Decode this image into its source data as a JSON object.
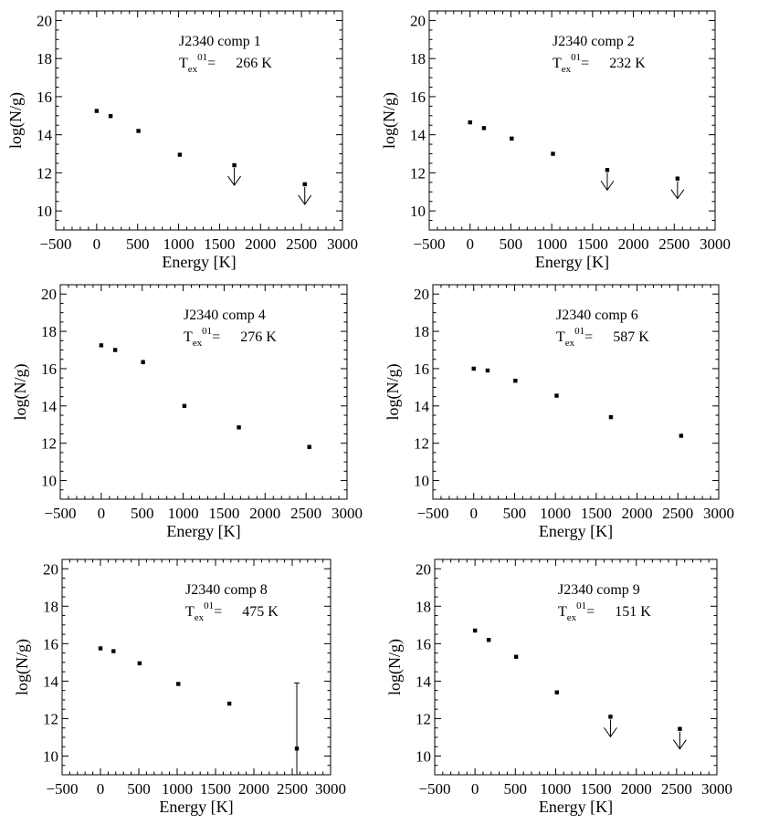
{
  "chart_data": [
    {
      "type": "scatter",
      "title": "J2340 comp 1",
      "annotation": {
        "symbol": "T",
        "subscript": "ex",
        "superscript": "01",
        "equals": "=",
        "value": "266 K"
      },
      "xlabel": "Energy [K]",
      "ylabel": "log(N/g)",
      "xlim": [
        -500,
        3000
      ],
      "ylim": [
        9,
        20.5
      ],
      "xticks": [
        -500,
        0,
        500,
        1000,
        1500,
        2000,
        2500,
        3000
      ],
      "yticks": [
        10,
        12,
        14,
        16,
        18,
        20
      ],
      "points": [
        {
          "x": 0,
          "y": 15.25,
          "upper_limit": false
        },
        {
          "x": 170,
          "y": 14.98,
          "upper_limit": false
        },
        {
          "x": 510,
          "y": 14.2,
          "upper_limit": false
        },
        {
          "x": 1015,
          "y": 12.95,
          "upper_limit": false
        },
        {
          "x": 1680,
          "y": 12.4,
          "upper_limit": true
        },
        {
          "x": 2540,
          "y": 11.4,
          "upper_limit": true
        }
      ]
    },
    {
      "type": "scatter",
      "title": "J2340 comp 2",
      "annotation": {
        "symbol": "T",
        "subscript": "ex",
        "superscript": "01",
        "equals": "=",
        "value": "232 K"
      },
      "xlabel": "Energy [K]",
      "ylabel": "log(N/g)",
      "xlim": [
        -500,
        3000
      ],
      "ylim": [
        9,
        20.5
      ],
      "xticks": [
        -500,
        0,
        500,
        1000,
        1500,
        2000,
        2500,
        3000
      ],
      "yticks": [
        10,
        12,
        14,
        16,
        18,
        20
      ],
      "points": [
        {
          "x": 0,
          "y": 14.65,
          "upper_limit": false
        },
        {
          "x": 170,
          "y": 14.35,
          "upper_limit": false
        },
        {
          "x": 510,
          "y": 13.8,
          "upper_limit": false
        },
        {
          "x": 1015,
          "y": 13.0,
          "upper_limit": false
        },
        {
          "x": 1680,
          "y": 12.15,
          "upper_limit": true
        },
        {
          "x": 2540,
          "y": 11.7,
          "upper_limit": true
        }
      ]
    },
    {
      "type": "scatter",
      "title": "J2340 comp 4",
      "annotation": {
        "symbol": "T",
        "subscript": "ex",
        "superscript": "01",
        "equals": "=",
        "value": "276 K"
      },
      "xlabel": "Energy [K]",
      "ylabel": "log(N/g)",
      "xlim": [
        -500,
        3000
      ],
      "ylim": [
        9,
        20.5
      ],
      "xticks": [
        -500,
        0,
        500,
        1000,
        1500,
        2000,
        2500,
        3000
      ],
      "yticks": [
        10,
        12,
        14,
        16,
        18,
        20
      ],
      "points": [
        {
          "x": 0,
          "y": 17.25,
          "upper_limit": false
        },
        {
          "x": 170,
          "y": 17.0,
          "upper_limit": false
        },
        {
          "x": 510,
          "y": 16.35,
          "err": 0.12,
          "upper_limit": false
        },
        {
          "x": 1015,
          "y": 14.0,
          "upper_limit": false
        },
        {
          "x": 1680,
          "y": 12.85,
          "upper_limit": false
        },
        {
          "x": 2540,
          "y": 11.8,
          "err": 0.12,
          "upper_limit": false
        }
      ]
    },
    {
      "type": "scatter",
      "title": "J2340 comp 6",
      "annotation": {
        "symbol": "T",
        "subscript": "ex",
        "superscript": "01",
        "equals": "=",
        "value": "587 K"
      },
      "xlabel": "Energy [K]",
      "ylabel": "log(N/g)",
      "xlim": [
        -500,
        3000
      ],
      "ylim": [
        9,
        20.5
      ],
      "xticks": [
        -500,
        0,
        500,
        1000,
        1500,
        2000,
        2500,
        3000
      ],
      "yticks": [
        10,
        12,
        14,
        16,
        18,
        20
      ],
      "points": [
        {
          "x": 0,
          "y": 16.0,
          "upper_limit": false
        },
        {
          "x": 170,
          "y": 15.9,
          "upper_limit": false
        },
        {
          "x": 510,
          "y": 15.35,
          "upper_limit": false
        },
        {
          "x": 1015,
          "y": 14.55,
          "upper_limit": false
        },
        {
          "x": 1680,
          "y": 13.4,
          "upper_limit": false
        },
        {
          "x": 2540,
          "y": 12.4,
          "upper_limit": false
        }
      ]
    },
    {
      "type": "scatter",
      "title": "J2340 comp 8",
      "annotation": {
        "symbol": "T",
        "subscript": "ex",
        "superscript": "01",
        "equals": "=",
        "value": "475 K"
      },
      "xlabel": "Energy [K]",
      "ylabel": "log(N/g)",
      "xlim": [
        -500,
        3000
      ],
      "ylim": [
        9,
        20.5
      ],
      "xticks": [
        -500,
        0,
        500,
        1000,
        1500,
        2000,
        2500,
        3000
      ],
      "yticks": [
        10,
        12,
        14,
        16,
        18,
        20
      ],
      "points": [
        {
          "x": 0,
          "y": 15.75,
          "upper_limit": false
        },
        {
          "x": 170,
          "y": 15.6,
          "upper_limit": false
        },
        {
          "x": 510,
          "y": 14.95,
          "upper_limit": false
        },
        {
          "x": 1015,
          "y": 13.85,
          "upper_limit": false
        },
        {
          "x": 1680,
          "y": 12.8,
          "upper_limit": false
        },
        {
          "x": 2560,
          "y": 10.4,
          "err_low": 1.4,
          "err_high": 3.5,
          "upper_limit": false
        }
      ]
    },
    {
      "type": "scatter",
      "title": "J2340 comp 9",
      "annotation": {
        "symbol": "T",
        "subscript": "ex",
        "superscript": "01",
        "equals": "=",
        "value": "151 K"
      },
      "xlabel": "Energy [K]",
      "ylabel": "log(N/g)",
      "xlim": [
        -500,
        3000
      ],
      "ylim": [
        9,
        20.5
      ],
      "xticks": [
        -500,
        0,
        500,
        1000,
        1500,
        2000,
        2500,
        3000
      ],
      "yticks": [
        10,
        12,
        14,
        16,
        18,
        20
      ],
      "points": [
        {
          "x": 0,
          "y": 16.7,
          "upper_limit": false
        },
        {
          "x": 170,
          "y": 16.2,
          "upper_limit": false
        },
        {
          "x": 510,
          "y": 15.3,
          "upper_limit": false
        },
        {
          "x": 1015,
          "y": 13.4,
          "upper_limit": false
        },
        {
          "x": 1680,
          "y": 12.1,
          "upper_limit": true
        },
        {
          "x": 2540,
          "y": 11.45,
          "upper_limit": true
        }
      ]
    }
  ]
}
